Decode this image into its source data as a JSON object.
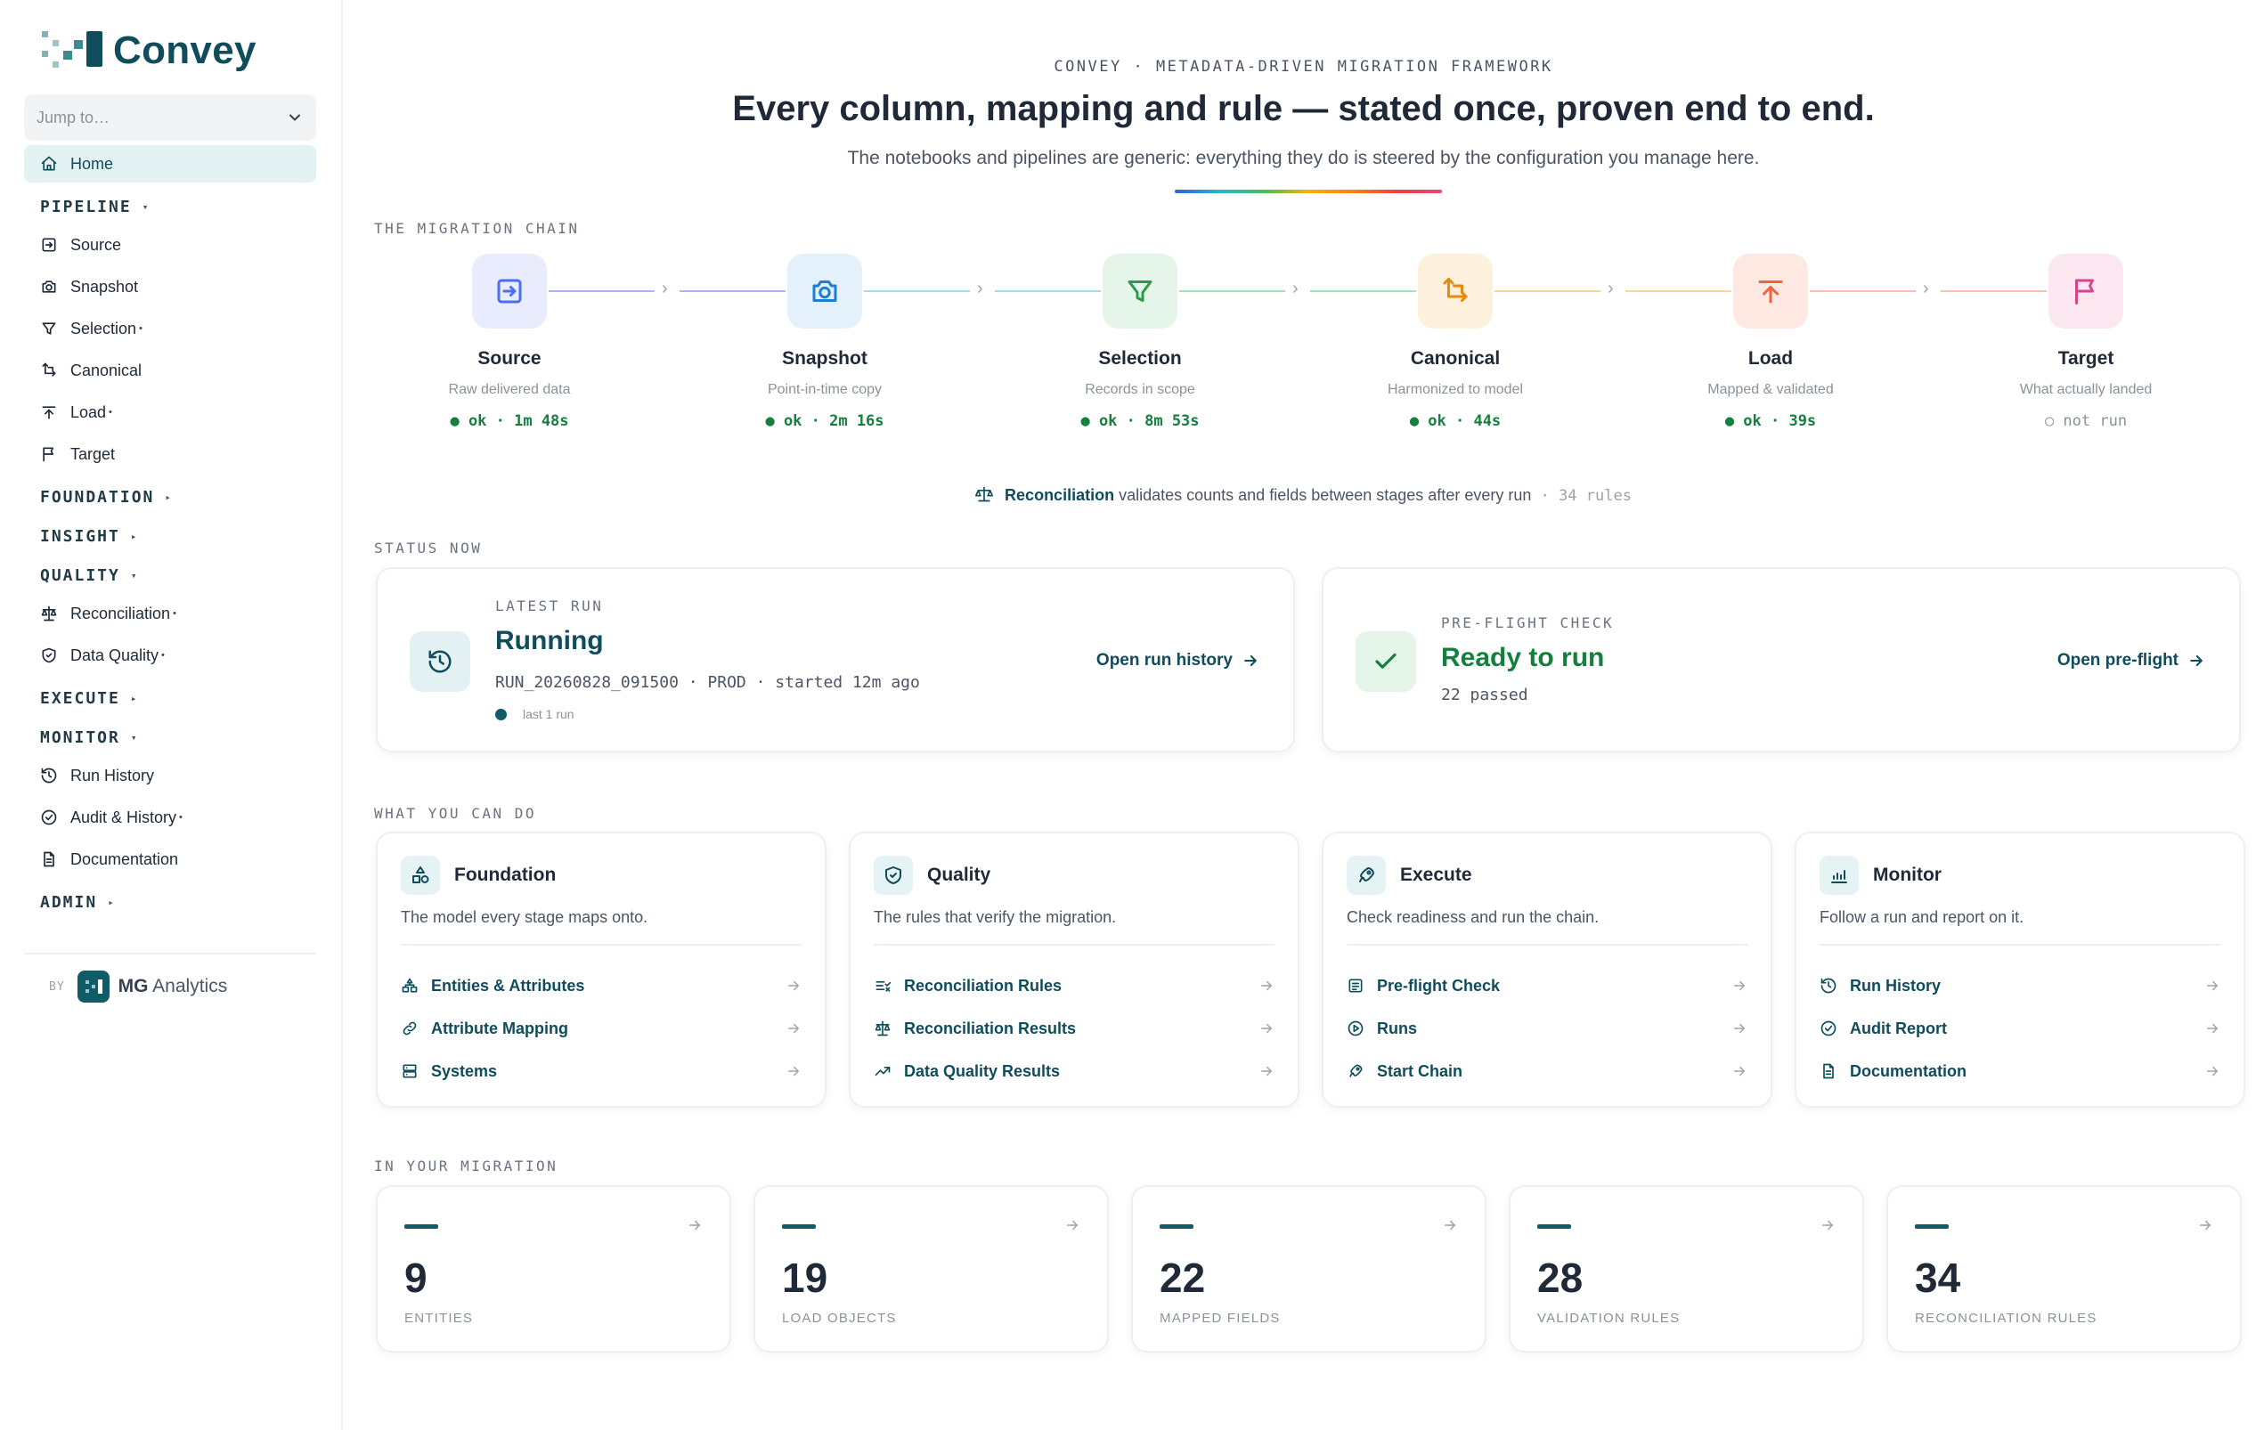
{
  "app": {
    "name": "Convey"
  },
  "sidebar": {
    "jump_placeholder": "Jump to…",
    "items": [
      {
        "type": "item",
        "label": "Home",
        "icon": "home-icon",
        "active": true
      },
      {
        "type": "group",
        "label": "PIPELINE",
        "caret": "▾"
      },
      {
        "type": "item",
        "label": "Source",
        "icon": "source-icon"
      },
      {
        "type": "item",
        "label": "Snapshot",
        "icon": "camera-icon"
      },
      {
        "type": "item",
        "label": "Selection",
        "icon": "filter-icon",
        "dot": "•"
      },
      {
        "type": "item",
        "label": "Canonical",
        "icon": "transform-icon"
      },
      {
        "type": "item",
        "label": "Load",
        "icon": "upload-icon",
        "dot": "•"
      },
      {
        "type": "item",
        "label": "Target",
        "icon": "flag-icon"
      },
      {
        "type": "group",
        "label": "FOUNDATION",
        "caret": "▸"
      },
      {
        "type": "group",
        "label": "INSIGHT",
        "caret": "▸"
      },
      {
        "type": "group",
        "label": "QUALITY",
        "caret": "▾"
      },
      {
        "type": "item",
        "label": "Reconciliation",
        "icon": "scale-icon",
        "dot": "•"
      },
      {
        "type": "item",
        "label": "Data Quality",
        "icon": "shield-icon",
        "dot": "•"
      },
      {
        "type": "group",
        "label": "EXECUTE",
        "caret": "▸"
      },
      {
        "type": "group",
        "label": "MONITOR",
        "caret": "▾"
      },
      {
        "type": "item",
        "label": "Run History",
        "icon": "history-icon"
      },
      {
        "type": "item",
        "label": "Audit & History",
        "icon": "check-circle-icon",
        "dot": "•"
      },
      {
        "type": "item",
        "label": "Documentation",
        "icon": "document-icon"
      },
      {
        "type": "group",
        "label": "ADMIN",
        "caret": "▸"
      }
    ],
    "byline": {
      "by": "BY",
      "company_bold": "MG",
      "company_rest": " Analytics"
    }
  },
  "hero": {
    "eyebrow": "CONVEY · METADATA-DRIVEN MIGRATION FRAMEWORK",
    "headline": "Every column, mapping and rule — stated once, proven end to end.",
    "subline": "The notebooks and pipelines are generic: everything they do is steered by the configuration you manage here."
  },
  "chain": {
    "label": "THE MIGRATION CHAIN",
    "stages": [
      {
        "name": "Source",
        "desc": "Raw delivered data",
        "stat": "● ok · 1m 48s",
        "ok": true,
        "icon": "source-icon",
        "color": "#4c6ef5",
        "bg": "#e8ecfc"
      },
      {
        "name": "Snapshot",
        "desc": "Point-in-time copy",
        "stat": "● ok · 2m 16s",
        "ok": true,
        "icon": "camera-icon",
        "color": "#1c7ed6",
        "bg": "#e4f1fa"
      },
      {
        "name": "Selection",
        "desc": "Records in scope",
        "stat": "● ok · 8m 53s",
        "ok": true,
        "icon": "filter-icon",
        "color": "#2b9a4b",
        "bg": "#e6f5ea"
      },
      {
        "name": "Canonical",
        "desc": "Harmonized to model",
        "stat": "● ok · 44s",
        "ok": true,
        "icon": "transform-icon",
        "color": "#e8890c",
        "bg": "#fdf0dc"
      },
      {
        "name": "Load",
        "desc": "Mapped & validated",
        "stat": "● ok · 39s",
        "ok": true,
        "icon": "upload-icon",
        "color": "#f0643c",
        "bg": "#fde9e2"
      },
      {
        "name": "Target",
        "desc": "What actually landed",
        "stat": "○ not run",
        "ok": false,
        "icon": "flag-icon",
        "color": "#d6458a",
        "bg": "#fbe7f0"
      }
    ],
    "connectors": [
      "#a5b4fc",
      "#a5d8f3",
      "#a7e2b5",
      "#fbd49a",
      "#fbbfae"
    ],
    "recon": {
      "strong": "Reconciliation",
      "text": " validates counts and fields between stages after every run",
      "count": " · 34 rules"
    }
  },
  "status": {
    "label": "STATUS NOW",
    "latest": {
      "eyebrow": "LATEST RUN",
      "title": "Running",
      "meta": "RUN_20260828_091500 · PROD · started 12m ago",
      "small": "last 1 run",
      "link": "Open run history"
    },
    "preflight": {
      "eyebrow": "PRE-FLIGHT CHECK",
      "title": "Ready to run",
      "meta": "22 passed",
      "link": "Open pre-flight"
    }
  },
  "actions": {
    "label": "WHAT YOU CAN DO",
    "cards": [
      {
        "title": "Foundation",
        "icon": "shapes-icon",
        "desc": "The model every stage maps onto.",
        "links": [
          {
            "label": "Entities & Attributes",
            "icon": "hierarchy-icon"
          },
          {
            "label": "Attribute Mapping",
            "icon": "link-icon"
          },
          {
            "label": "Systems",
            "icon": "server-icon"
          }
        ]
      },
      {
        "title": "Quality",
        "icon": "shield-icon",
        "desc": "The rules that verify the migration.",
        "links": [
          {
            "label": "Reconciliation Rules",
            "icon": "list-check-icon"
          },
          {
            "label": "Reconciliation Results",
            "icon": "scale-icon"
          },
          {
            "label": "Data Quality Results",
            "icon": "trend-icon"
          }
        ]
      },
      {
        "title": "Execute",
        "icon": "rocket-icon",
        "desc": "Check readiness and run the chain.",
        "links": [
          {
            "label": "Pre-flight Check",
            "icon": "checklist-icon"
          },
          {
            "label": "Runs",
            "icon": "play-circle-icon"
          },
          {
            "label": "Start Chain",
            "icon": "rocket-icon"
          }
        ]
      },
      {
        "title": "Monitor",
        "icon": "chart-icon",
        "desc": "Follow a run and report on it.",
        "links": [
          {
            "label": "Run History",
            "icon": "history-icon"
          },
          {
            "label": "Audit Report",
            "icon": "check-circle-icon"
          },
          {
            "label": "Documentation",
            "icon": "document-icon"
          }
        ]
      }
    ]
  },
  "metrics": {
    "label": "IN YOUR MIGRATION",
    "items": [
      {
        "value": "9",
        "label": "ENTITIES"
      },
      {
        "value": "19",
        "label": "LOAD OBJECTS"
      },
      {
        "value": "22",
        "label": "MAPPED FIELDS"
      },
      {
        "value": "28",
        "label": "VALIDATION RULES"
      },
      {
        "value": "34",
        "label": "RECONCILIATION RULES"
      }
    ]
  },
  "colors": {
    "brand": "#0f4c5c",
    "ok": "#15803d",
    "muted": "#8a929a"
  }
}
